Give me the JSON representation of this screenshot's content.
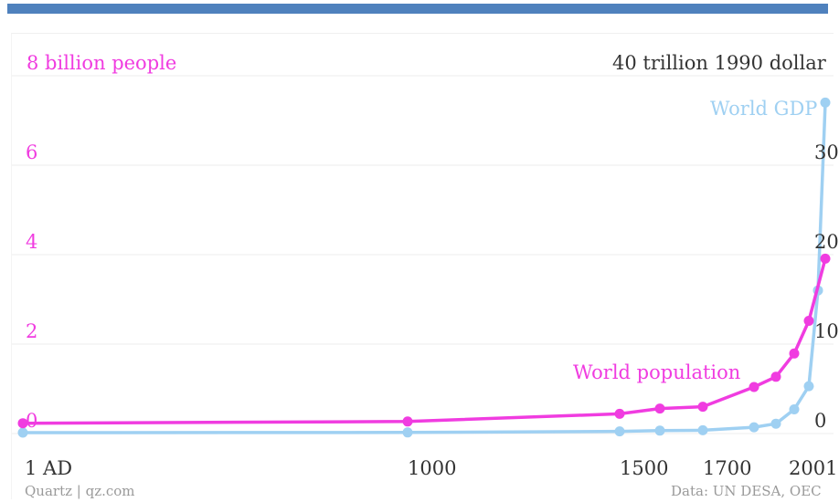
{
  "colors": {
    "population": "#f03ce0",
    "gdp": "#9fd0f2",
    "header_bar": "#4f81bd",
    "grid": "#eeeeee",
    "text_dark": "#333333"
  },
  "chart_data": {
    "type": "line",
    "left_axis": {
      "top_label": "8 billion people",
      "ticks": [
        "6",
        "4",
        "2",
        "0"
      ],
      "range": [
        0,
        8
      ]
    },
    "right_axis": {
      "top_label": "40 trillion 1990 dollar",
      "ticks": [
        "30",
        "20",
        "10",
        "0"
      ],
      "range": [
        0,
        40
      ]
    },
    "x_ticks": [
      "1 AD",
      "1000",
      "1500",
      "1700",
      "2001"
    ],
    "grid": true,
    "series": [
      {
        "name": "World population",
        "axis": "left",
        "points": [
          {
            "x": 1,
            "y": 0.23
          },
          {
            "x": 1000,
            "y": 0.27
          },
          {
            "x": 1500,
            "y": 0.44
          },
          {
            "x": 1600,
            "y": 0.56
          },
          {
            "x": 1700,
            "y": 0.6
          },
          {
            "x": 1820,
            "y": 1.04
          },
          {
            "x": 1870,
            "y": 1.27
          },
          {
            "x": 1913,
            "y": 1.79
          },
          {
            "x": 1950,
            "y": 2.52
          },
          {
            "x": 2001,
            "y": 3.91
          }
        ]
      },
      {
        "name": "World GDP",
        "axis": "right",
        "points": [
          {
            "x": 1,
            "y": 0.1
          },
          {
            "x": 1000,
            "y": 0.12
          },
          {
            "x": 1500,
            "y": 0.25
          },
          {
            "x": 1600,
            "y": 0.33
          },
          {
            "x": 1700,
            "y": 0.37
          },
          {
            "x": 1820,
            "y": 0.7
          },
          {
            "x": 1870,
            "y": 1.1
          },
          {
            "x": 1913,
            "y": 2.7
          },
          {
            "x": 1950,
            "y": 5.3
          },
          {
            "x": 1973,
            "y": 16.0
          },
          {
            "x": 2001,
            "y": 37.0
          }
        ]
      }
    ],
    "source": "Data: UN DESA, OEC",
    "credit": "Quartz | qz.com"
  }
}
